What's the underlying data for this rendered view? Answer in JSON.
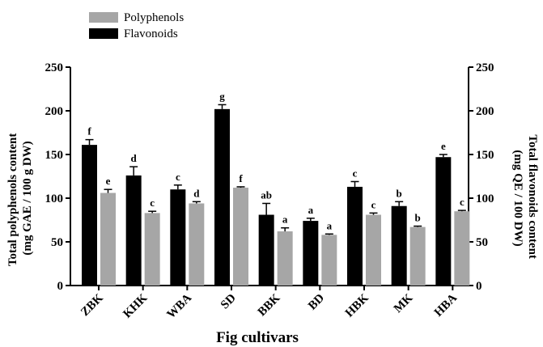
{
  "chart_data": {
    "type": "bar",
    "xlabel": "Fig cultivars",
    "ylabel_left": [
      "Total polyphenols content",
      "(mg GAE / 100 g DW)"
    ],
    "ylabel_right": [
      "Total flavonoids content",
      "(mg QE / 100 DW)"
    ],
    "ylim": [
      0,
      250
    ],
    "yticks": [
      0,
      50,
      100,
      150,
      200,
      250
    ],
    "legend_position": "top-left",
    "categories": [
      "ZBK",
      "KHK",
      "WBA",
      "SD",
      "BBK",
      "BD",
      "HBK",
      "MK",
      "HBA"
    ],
    "series": [
      {
        "name": "Flavonoids",
        "color": "#000000",
        "axis": "right",
        "values": [
          161,
          126,
          110,
          202,
          81,
          74,
          113,
          91,
          147
        ],
        "errors": [
          6,
          10,
          5,
          5,
          13,
          3,
          6,
          5,
          3
        ],
        "letters": [
          "f",
          "d",
          "c",
          "g",
          "ab",
          "a",
          "c",
          "b",
          "e"
        ]
      },
      {
        "name": "Polyphenols",
        "color": "#a6a6a6",
        "axis": "left",
        "values": [
          106,
          83,
          94,
          112,
          62,
          58,
          81,
          67,
          85
        ],
        "errors": [
          4,
          2,
          2,
          1,
          4,
          1,
          2,
          1,
          1
        ],
        "letters": [
          "e",
          "c",
          "d",
          "f",
          "a",
          "a",
          "c",
          "b",
          "c"
        ]
      }
    ],
    "legend_order": [
      "Polyphenols",
      "Flavonoids"
    ]
  }
}
